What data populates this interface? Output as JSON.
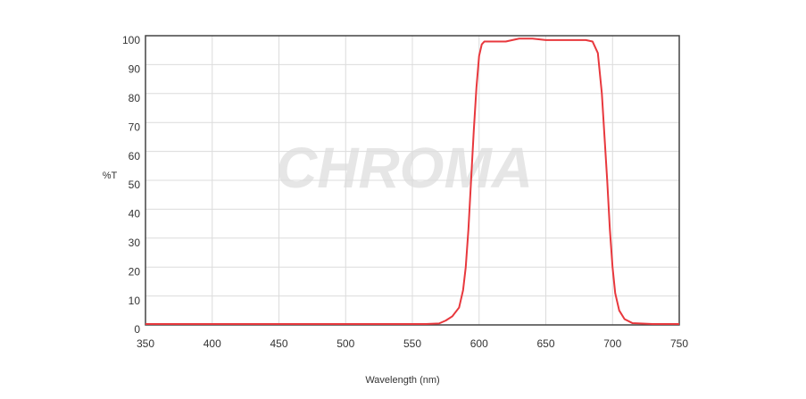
{
  "chart_data": {
    "type": "line",
    "xlabel": "Wavelength (nm)",
    "ylabel": "%T",
    "watermark": "CHROMA",
    "x": [
      350,
      400,
      450,
      500,
      550,
      560,
      570,
      575,
      580,
      585,
      588,
      590,
      592,
      594,
      596,
      598,
      600,
      602,
      604,
      610,
      620,
      630,
      640,
      650,
      660,
      670,
      680,
      685,
      689,
      692,
      694,
      696,
      698,
      700,
      702,
      705,
      709,
      715,
      730,
      750
    ],
    "series": [
      {
        "name": "%T",
        "color": "#e8383d",
        "values": [
          0.3,
          0.3,
          0.3,
          0.3,
          0.3,
          0.3,
          0.5,
          1.5,
          3,
          6,
          12,
          20,
          33,
          50,
          67,
          82,
          93,
          97,
          98,
          98,
          98,
          99,
          99,
          98.5,
          98.5,
          98.5,
          98.5,
          98,
          94,
          80,
          65,
          50,
          33,
          20,
          11,
          5,
          2,
          0.6,
          0.3,
          0.3
        ]
      }
    ],
    "xlim": [
      350,
      750
    ],
    "xticks": [
      350,
      400,
      450,
      500,
      550,
      600,
      650,
      700,
      750
    ],
    "ylim": [
      0,
      100
    ],
    "yticks": [
      0,
      10,
      20,
      30,
      40,
      50,
      60,
      70,
      80,
      90,
      100
    ],
    "grid": true
  }
}
